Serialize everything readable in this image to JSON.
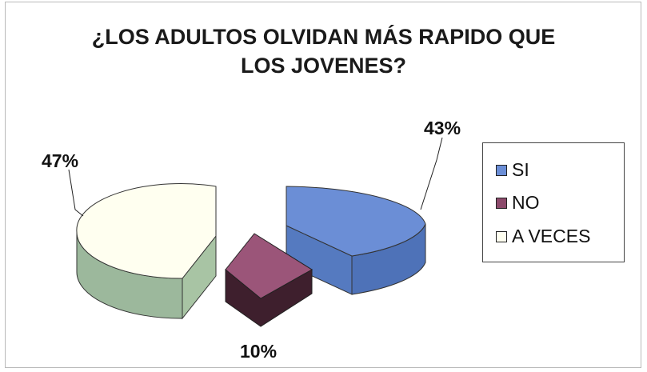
{
  "chart_data": {
    "type": "pie",
    "title_lines": [
      "¿LOS ADULTOS OLVIDAN MÁS RAPIDO QUE",
      "LOS JOVENES?"
    ],
    "categories": [
      "SI",
      "NO",
      "A VECES"
    ],
    "values": [
      43,
      10,
      47
    ],
    "value_labels": [
      "43%",
      "10%",
      "47%"
    ],
    "colors": [
      "#6b8ed6",
      "#8c4a6b",
      "#fffff0"
    ],
    "legend_placement": "right",
    "style": "3d exploded pie"
  }
}
